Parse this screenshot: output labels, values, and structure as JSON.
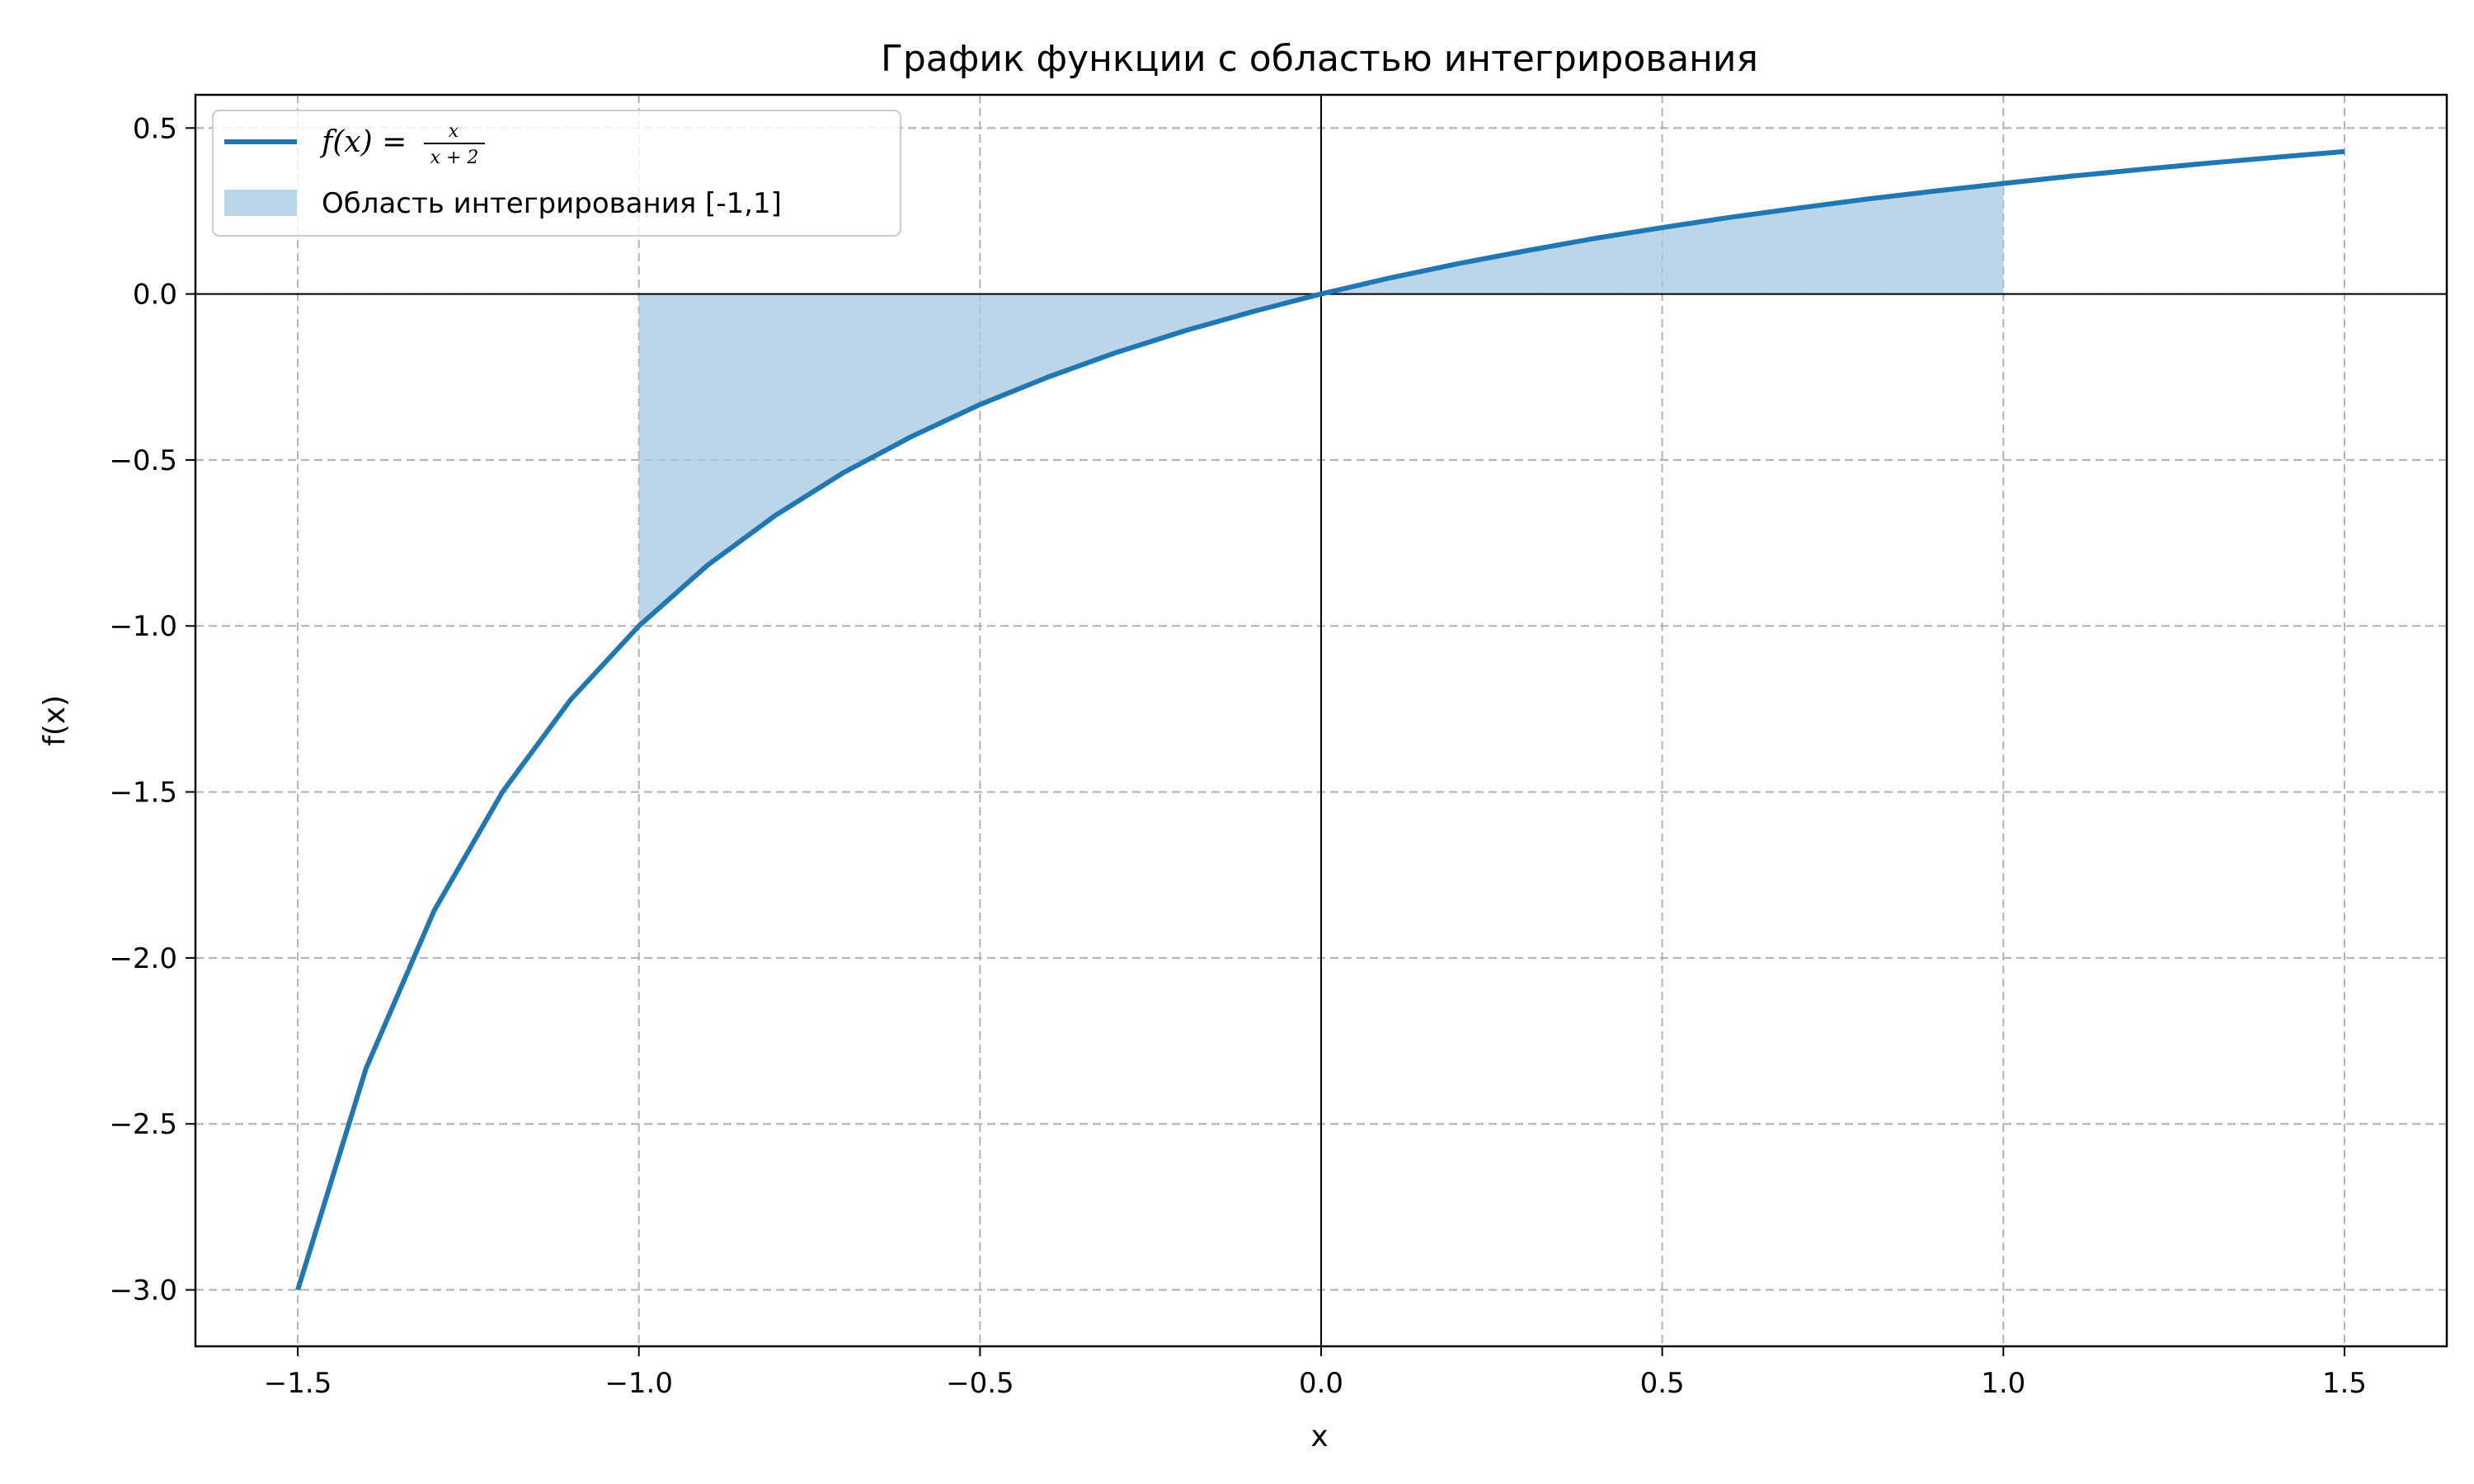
{
  "chart_data": {
    "type": "area",
    "title": "График функции с областью интегрирования",
    "xlabel": "x",
    "ylabel": "f(x)",
    "xlim": [
      -1.65,
      1.65
    ],
    "ylim": [
      -3.17,
      0.6
    ],
    "xticks": [
      -1.5,
      -1.0,
      -0.5,
      0.0,
      0.5,
      1.0,
      1.5
    ],
    "yticks": [
      0.5,
      0.0,
      -0.5,
      -1.0,
      -1.5,
      -2.0,
      -2.5,
      -3.0
    ],
    "grid": true,
    "legend_position": "top-left",
    "series": [
      {
        "name": "f(x) = x/(x+2)",
        "kind": "line",
        "color": "#1f77b4",
        "x": [
          -1.5,
          -1.4,
          -1.3,
          -1.2,
          -1.1,
          -1.0,
          -0.9,
          -0.8,
          -0.7,
          -0.6,
          -0.5,
          -0.4,
          -0.3,
          -0.2,
          -0.1,
          0.0,
          0.1,
          0.2,
          0.3,
          0.4,
          0.5,
          0.6,
          0.7,
          0.8,
          0.9,
          1.0,
          1.1,
          1.2,
          1.3,
          1.4,
          1.5
        ],
        "y": [
          -3.0,
          -2.333,
          -1.857,
          -1.5,
          -1.222,
          -1.0,
          -0.818,
          -0.667,
          -0.538,
          -0.429,
          -0.333,
          -0.25,
          -0.176,
          -0.111,
          -0.053,
          0.0,
          0.048,
          0.091,
          0.13,
          0.167,
          0.2,
          0.231,
          0.259,
          0.286,
          0.31,
          0.333,
          0.355,
          0.375,
          0.394,
          0.412,
          0.429
        ]
      },
      {
        "name": "Область интегрирования [-1,1]",
        "kind": "fill",
        "color": "#a6c8e2",
        "x_range": [
          -1.0,
          1.0
        ]
      }
    ]
  },
  "legend": {
    "line_math_prefix": "f(x) = ",
    "line_math_numerator": "x",
    "line_math_denominator": "x + 2",
    "fill_label": "Область интегрирования [-1,1]"
  },
  "colors": {
    "line": "#1f77b4",
    "fill": "#a6c8e2",
    "grid": "#b0b0b0",
    "axis": "#000000"
  }
}
